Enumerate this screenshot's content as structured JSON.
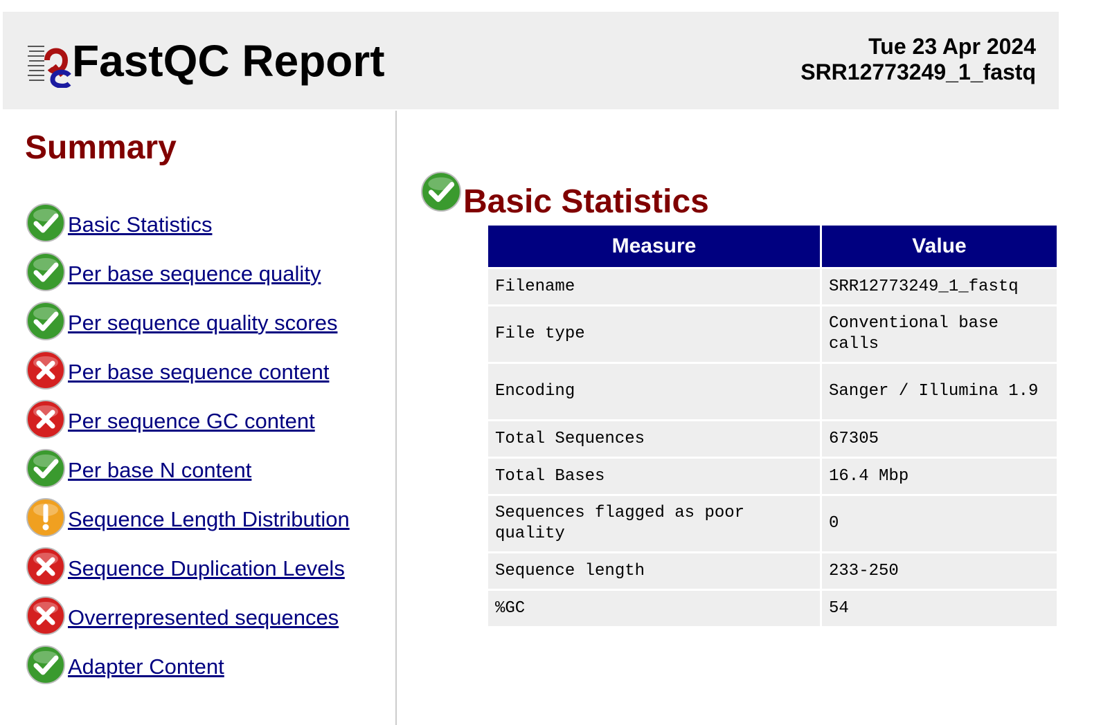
{
  "header": {
    "title": "FastQC Report",
    "date": "Tue 23 Apr 2024",
    "filename": "SRR12773249_1_fastq"
  },
  "summary": {
    "title": "Summary",
    "items": [
      {
        "label": "Basic Statistics",
        "status": "pass"
      },
      {
        "label": "Per base sequence quality",
        "status": "pass"
      },
      {
        "label": "Per sequence quality scores",
        "status": "pass"
      },
      {
        "label": "Per base sequence content",
        "status": "fail"
      },
      {
        "label": "Per sequence GC content",
        "status": "fail"
      },
      {
        "label": "Per base N content",
        "status": "pass"
      },
      {
        "label": "Sequence Length Distribution",
        "status": "warn"
      },
      {
        "label": "Sequence Duplication Levels",
        "status": "fail"
      },
      {
        "label": "Overrepresented sequences",
        "status": "fail"
      },
      {
        "label": "Adapter Content",
        "status": "pass"
      }
    ]
  },
  "module": {
    "title": "Basic Statistics",
    "status": "pass",
    "headers": {
      "measure": "Measure",
      "value": "Value"
    },
    "rows": [
      {
        "measure": "Filename",
        "value": "SRR12773249_1_fastq"
      },
      {
        "measure": "File type",
        "value": "Conventional base calls"
      },
      {
        "measure": "Encoding",
        "value": "Sanger / Illumina 1.9"
      },
      {
        "measure": "Total Sequences",
        "value": "67305"
      },
      {
        "measure": "Total Bases",
        "value": "16.4 Mbp"
      },
      {
        "measure": "Sequences flagged as poor quality",
        "value": "0"
      },
      {
        "measure": "Sequence length",
        "value": "233-250"
      },
      {
        "measure": "%GC",
        "value": "54"
      }
    ]
  },
  "colors": {
    "heading": "#800000",
    "link": "#000080",
    "table_header": "#000080",
    "pass": "#3a9a2e",
    "fail": "#d42020",
    "warn": "#f0a020"
  }
}
